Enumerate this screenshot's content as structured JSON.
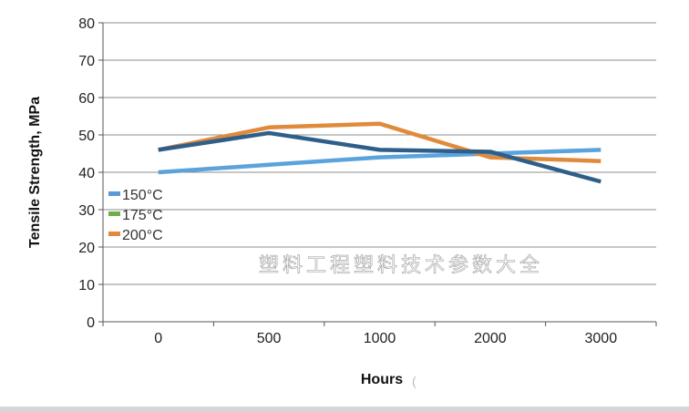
{
  "chart_data": {
    "type": "line",
    "title": "",
    "xlabel": "Hours",
    "xlabel_suffix": "(",
    "ylabel": "Tensile Strength, MPa",
    "categories": [
      "0",
      "500",
      "1000",
      "2000",
      "3000"
    ],
    "ylim": [
      0,
      80
    ],
    "yticks": [
      0,
      10,
      20,
      30,
      40,
      50,
      60,
      70,
      80
    ],
    "grid": true,
    "legend_position": "left",
    "series": [
      {
        "name": "150°C",
        "color": "#5b9bd5",
        "values": [
          40,
          42,
          44,
          45,
          46
        ]
      },
      {
        "name": "175°C",
        "color": "#70ad47",
        "values": [
          46,
          50.5,
          46,
          45.5,
          37.5
        ]
      },
      {
        "name": "200°C",
        "color": "#e08a3c",
        "values": [
          46,
          52,
          53,
          44,
          43
        ]
      }
    ],
    "line_colors": [
      "#5ba3dc",
      "#2e5f8a",
      "#e08a3c"
    ],
    "watermark": "塑料工程塑料技术参数大全"
  }
}
